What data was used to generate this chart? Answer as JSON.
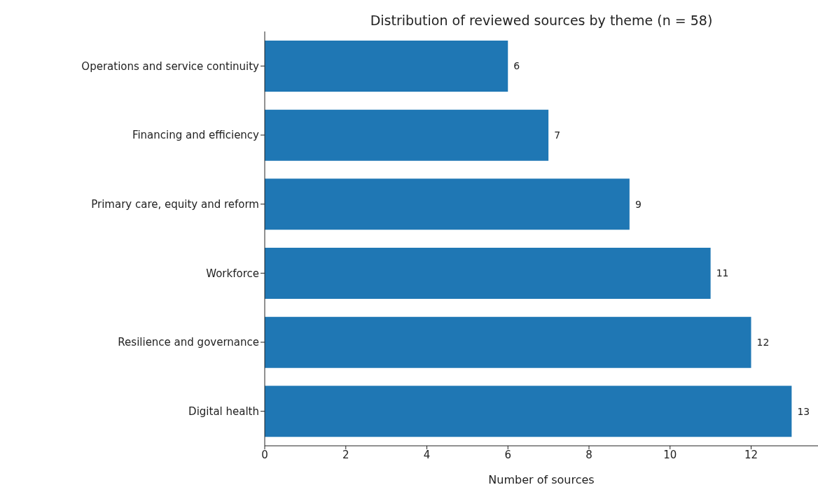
{
  "chart_data": {
    "type": "bar",
    "orientation": "horizontal",
    "title": "Distribution of reviewed sources by theme (n = 58)",
    "xlabel": "Number of sources",
    "categories": [
      "Operations and service continuity",
      "Financing and efficiency",
      "Primary care, equity and reform",
      "Workforce",
      "Resilience and governance",
      "Digital health"
    ],
    "values": [
      6,
      7,
      9,
      11,
      12,
      13
    ],
    "color": "#1f77b4",
    "data_labels": true,
    "xlim": [
      0,
      13.65
    ],
    "xticks": [
      0,
      2,
      4,
      6,
      8,
      10,
      12
    ],
    "grid": false
  }
}
